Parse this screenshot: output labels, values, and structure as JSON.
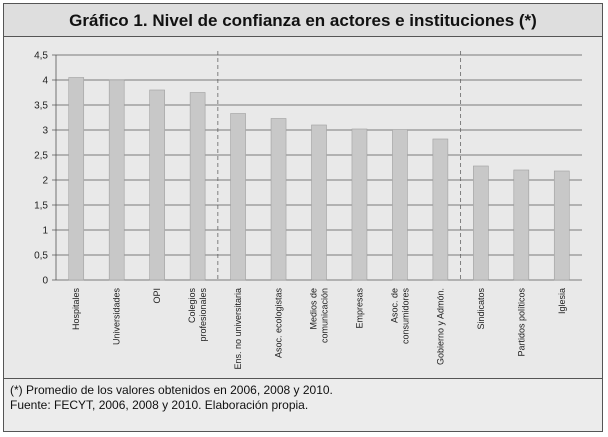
{
  "chart_data": {
    "type": "bar",
    "title": "Gráfico 1. Nivel de confianza en actores e instituciones (*)",
    "categories": [
      "Hospitales",
      "Universidades",
      "OPI",
      "Colegios profesionales",
      "Ens. no universitaria",
      "Asoc. ecologistas",
      "Medios de comunicación",
      "Empresas",
      "Asoc. de consumidores",
      "Gobierno y Admón.",
      "Sindicatos",
      "Partidos políticos",
      "Iglesia"
    ],
    "category_lines": [
      [
        "Hospitales"
      ],
      [
        "Universidades"
      ],
      [
        "OPI"
      ],
      [
        "Colegios",
        "profesionales"
      ],
      [
        "Ens. no universitaria"
      ],
      [
        "Asoc. ecologistas"
      ],
      [
        "Medios de",
        "comunicación"
      ],
      [
        "Empresas"
      ],
      [
        "Asoc. de",
        "consumidores"
      ],
      [
        "Gobierno y Admón."
      ],
      [
        "Sindicatos"
      ],
      [
        "Partidos políticos"
      ],
      [
        "Iglesia"
      ]
    ],
    "values": [
      4.05,
      4.0,
      3.8,
      3.75,
      3.33,
      3.23,
      3.1,
      3.02,
      3.01,
      2.82,
      2.28,
      2.2,
      2.18
    ],
    "ylim": [
      0,
      4.5
    ],
    "yticks": [
      "0",
      "0,5",
      "1",
      "1,5",
      "2",
      "2,5",
      "3",
      "3,5",
      "4",
      "4,5"
    ],
    "group_separators_after": [
      3,
      9
    ],
    "grid": true,
    "colors": {
      "bar_fill": "#c8c8c8",
      "bar_stroke": "#a0a0a0",
      "grid": "#555555",
      "background": "#e9e9e9"
    }
  },
  "notes": {
    "line1": "(*) Promedio de los valores obtenidos en 2006, 2008 y 2010.",
    "line2": "Fuente: FECYT, 2006, 2008 y 2010. Elaboración propia."
  }
}
